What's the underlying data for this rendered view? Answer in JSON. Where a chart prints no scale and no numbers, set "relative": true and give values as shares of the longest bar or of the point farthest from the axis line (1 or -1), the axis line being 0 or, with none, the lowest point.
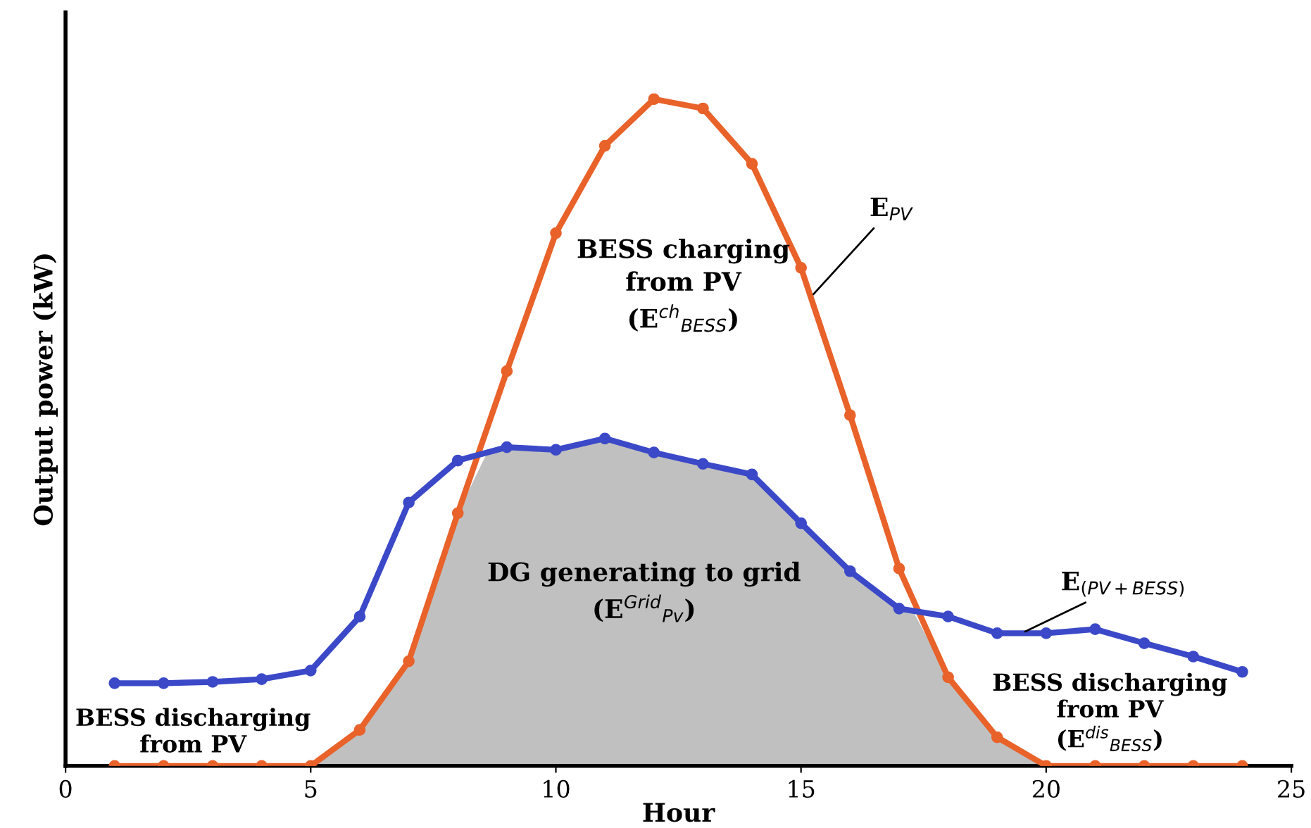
{
  "chart_data": {
    "type": "line",
    "relative": true,
    "xlabel": "Hour",
    "ylabel": "Output power (kW)",
    "xlim": [
      0,
      25
    ],
    "xticks": [
      0,
      5,
      10,
      15,
      20,
      25
    ],
    "grid": false,
    "legend": false,
    "line_style": "solid",
    "series": [
      {
        "type": "area",
        "color": "#c0c0c0",
        "marker": "none",
        "x": [
          5,
          6,
          7,
          8,
          8.6,
          9,
          10,
          11,
          12,
          13,
          14,
          15,
          16,
          17,
          17.3,
          18,
          19,
          20
        ],
        "values": [
          0,
          0.054,
          0.157,
          0.379,
          0.47,
          0.478,
          0.474,
          0.491,
          0.47,
          0.453,
          0.437,
          0.364,
          0.292,
          0.236,
          0.23,
          0.133,
          0.043,
          0
        ]
      },
      {
        "color": "#e8622a",
        "marker": "circle",
        "x": [
          1,
          2,
          3,
          4,
          5,
          6,
          7,
          8,
          9,
          10,
          11,
          12,
          13,
          14,
          15,
          16,
          17,
          18,
          19,
          20,
          21,
          22,
          23,
          24
        ],
        "values": [
          0,
          0,
          0,
          0,
          0,
          0.054,
          0.157,
          0.379,
          0.592,
          0.799,
          0.93,
          1,
          0.986,
          0.903,
          0.747,
          0.526,
          0.296,
          0.133,
          0.043,
          0,
          0,
          0,
          0,
          0
        ]
      },
      {
        "color": "#3b49c8",
        "marker": "circle",
        "x": [
          1,
          2,
          3,
          4,
          5,
          6,
          7,
          8,
          9,
          10,
          11,
          12,
          13,
          14,
          15,
          16,
          17,
          18,
          19,
          20,
          21,
          22,
          23,
          24
        ],
        "values": [
          0.124,
          0.124,
          0.126,
          0.13,
          0.143,
          0.224,
          0.395,
          0.458,
          0.478,
          0.474,
          0.491,
          0.47,
          0.453,
          0.437,
          0.364,
          0.292,
          0.236,
          0.224,
          0.199,
          0.199,
          0.205,
          0.184,
          0.164,
          0.141
        ]
      }
    ],
    "annotations": [
      {
        "text": "E$_{PV}$",
        "x": 15.2,
        "y": 0.703
      },
      "BESS charging\nfrom PV\n(E$^{ch}$$_{BESS}$)",
      "DG generating to grid\n(E$^{Grid}$$_{Pv}$)",
      {
        "text": "E$_{(PV+BESS)}$",
        "x": 19.5,
        "y": 0.199
      },
      "BESS discharging\nfrom PV",
      "BESS discharging\nfrom PV\n(E$^{dis}$$_{BESS}$)"
    ]
  }
}
